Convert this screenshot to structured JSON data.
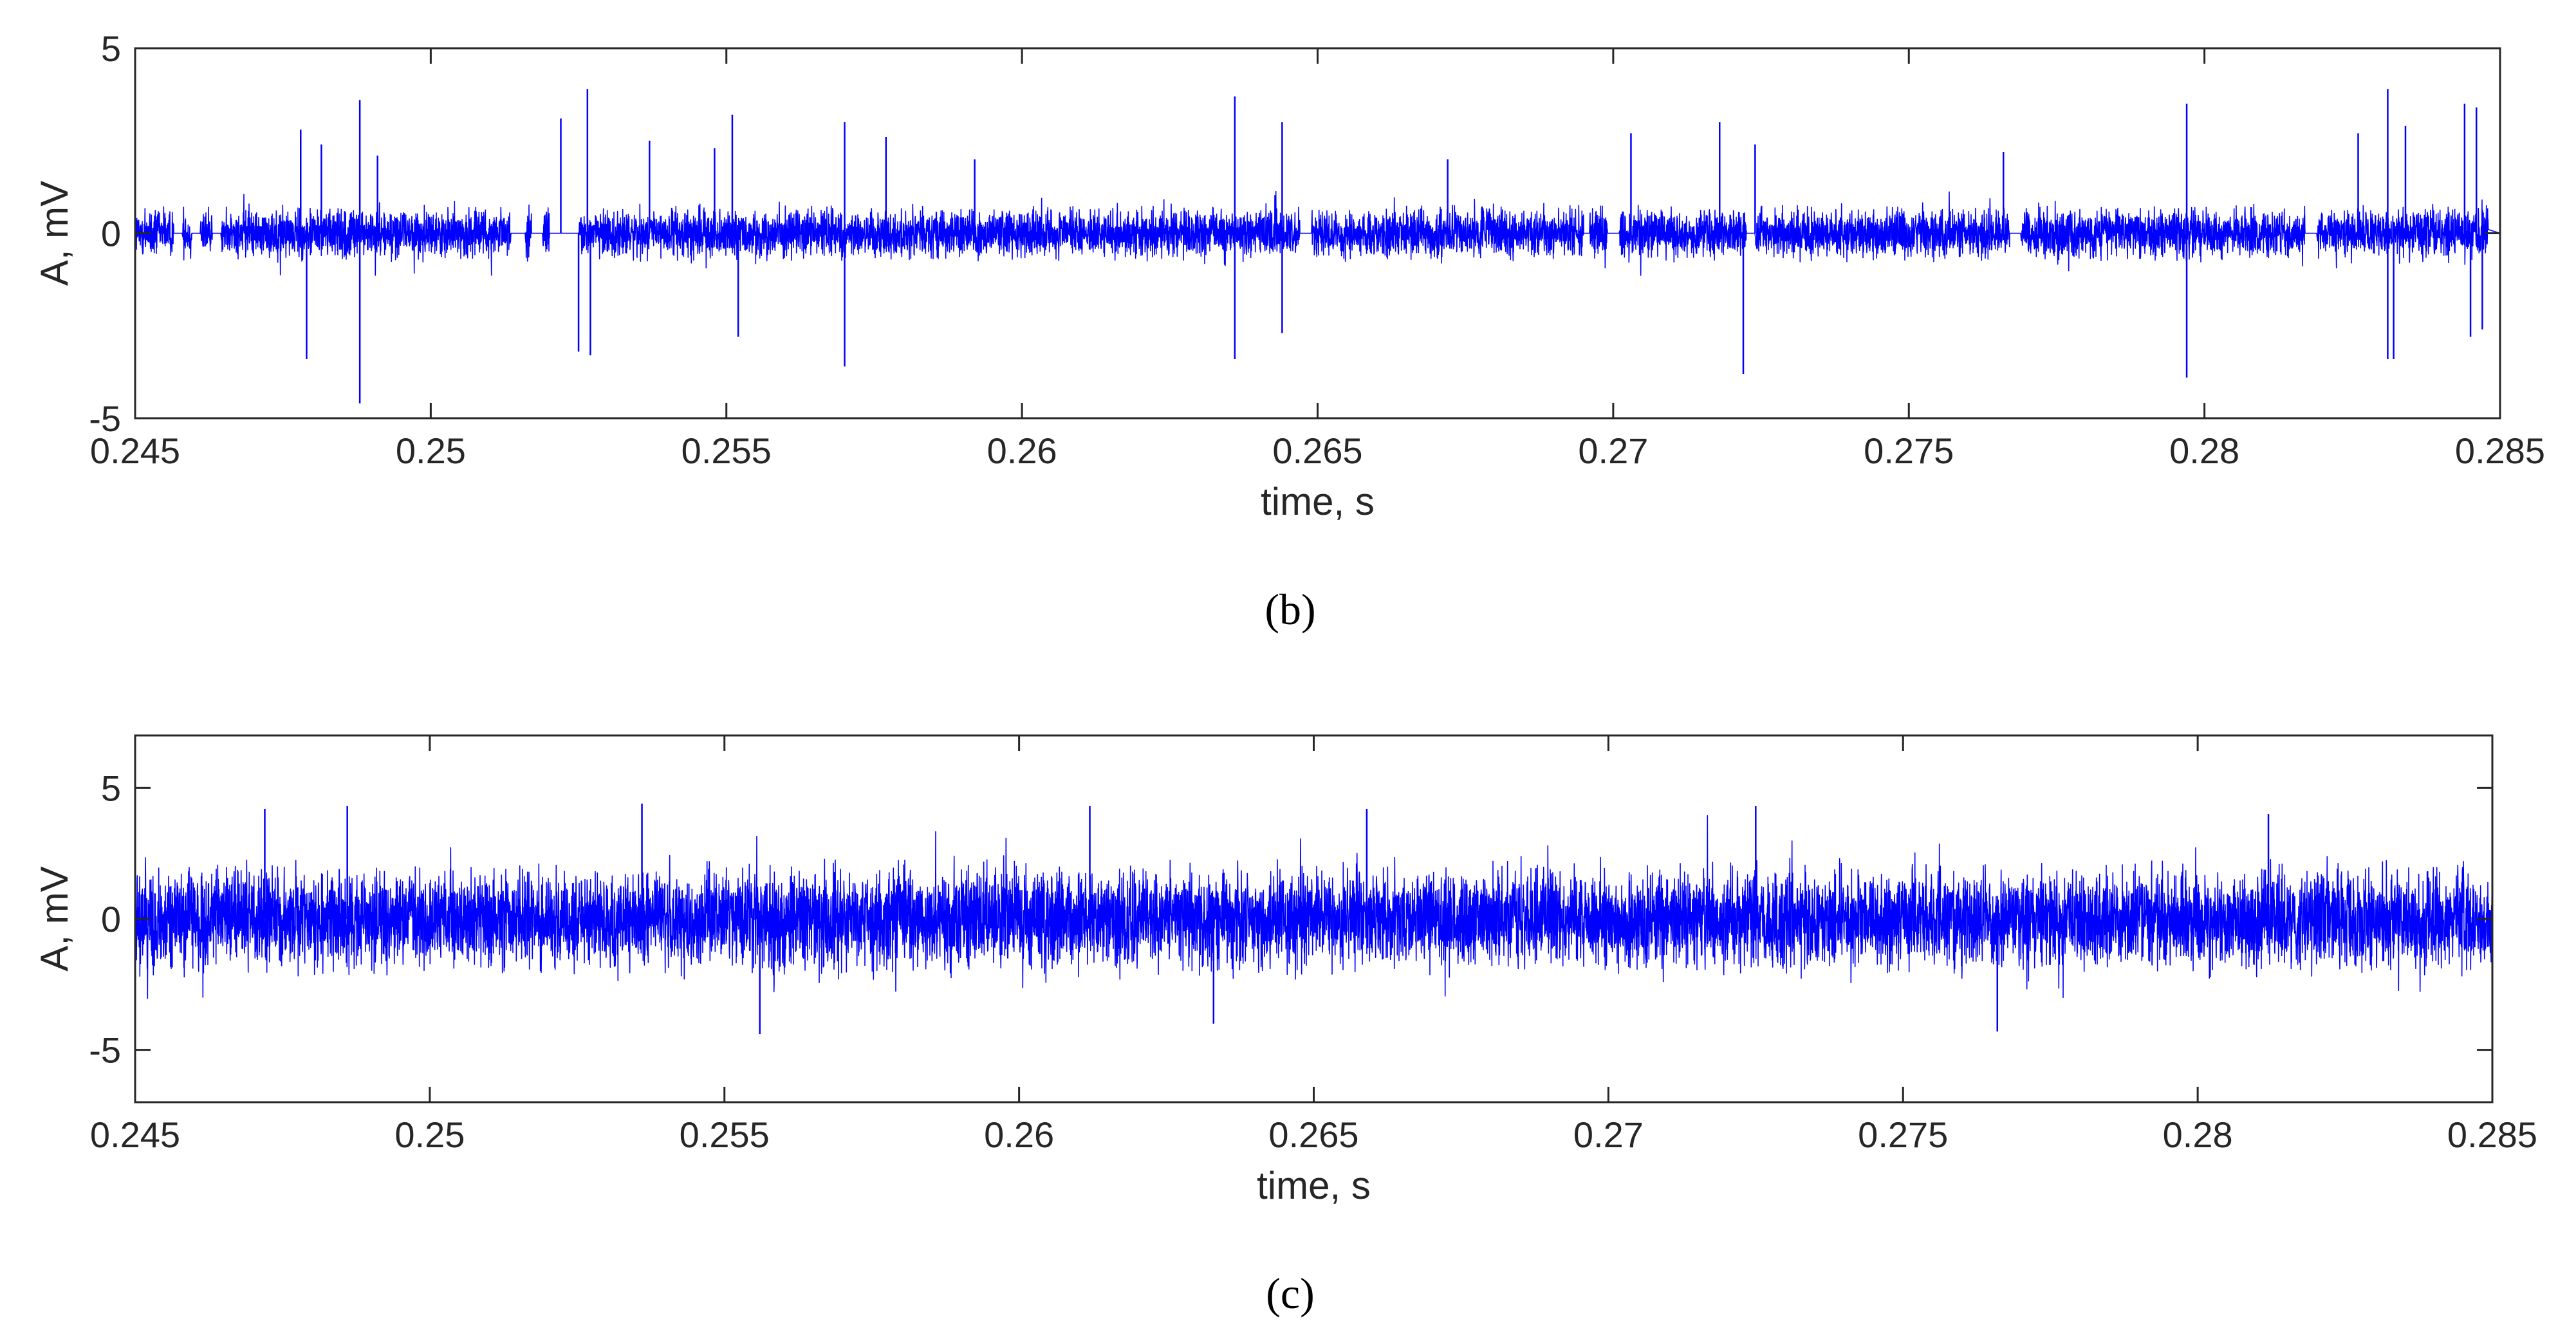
{
  "chart_data": [
    {
      "type": "line",
      "panel_label": "b",
      "title": "",
      "xlabel": "time, s",
      "ylabel": "A, mV",
      "xlim": [
        0.245,
        0.285
      ],
      "ylim": [
        -5,
        5
      ],
      "x_ticks": [
        0.245,
        0.25,
        0.255,
        0.26,
        0.265,
        0.27,
        0.275,
        0.28,
        0.285
      ],
      "x_tick_labels": [
        "0.245",
        "0.25",
        "0.255",
        "0.26",
        "0.265",
        "0.27",
        "0.275",
        "0.28",
        "0.285"
      ],
      "y_ticks": [
        -5,
        0,
        5
      ],
      "y_tick_labels": [
        "-5",
        "0",
        "5"
      ],
      "grid": false,
      "legend": "none",
      "color": "#0000ff",
      "signal": {
        "x_start": 0.245,
        "x_end": 0.2848,
        "noise_amplitude": 0.9,
        "quiet_intervals": [
          [
            0.24565,
            0.2458
          ],
          [
            0.24595,
            0.2461
          ],
          [
            0.2463,
            0.24645
          ],
          [
            0.25135,
            0.2516
          ],
          [
            0.2517,
            0.2519
          ],
          [
            0.252,
            0.2525
          ],
          [
            0.2647,
            0.2649
          ],
          [
            0.2695,
            0.2696
          ],
          [
            0.2699,
            0.2701
          ],
          [
            0.27225,
            0.2724
          ],
          [
            0.2767,
            0.2769
          ],
          [
            0.2817,
            0.2819
          ],
          [
            0.2848,
            0.285
          ]
        ],
        "spikes": [
          [
            0.2478,
            2.8
          ],
          [
            0.2479,
            -3.4
          ],
          [
            0.24815,
            2.4
          ],
          [
            0.2488,
            3.6
          ],
          [
            0.2488,
            -4.6
          ],
          [
            0.2491,
            2.1
          ],
          [
            0.2522,
            3.1
          ],
          [
            0.2525,
            -3.2
          ],
          [
            0.25265,
            3.9
          ],
          [
            0.2527,
            -3.3
          ],
          [
            0.2537,
            2.5
          ],
          [
            0.2548,
            2.3
          ],
          [
            0.2551,
            3.2
          ],
          [
            0.2552,
            -2.8
          ],
          [
            0.257,
            3.0
          ],
          [
            0.257,
            -3.6
          ],
          [
            0.2577,
            2.6
          ],
          [
            0.2592,
            2.0
          ],
          [
            0.2636,
            3.7
          ],
          [
            0.2636,
            -3.4
          ],
          [
            0.2644,
            3.0
          ],
          [
            0.2644,
            -2.7
          ],
          [
            0.2672,
            2.0
          ],
          [
            0.2703,
            2.7
          ],
          [
            0.2718,
            3.0
          ],
          [
            0.2722,
            -3.8
          ],
          [
            0.2724,
            2.4
          ],
          [
            0.2766,
            2.2
          ],
          [
            0.2797,
            3.5
          ],
          [
            0.2797,
            -3.9
          ],
          [
            0.2826,
            2.7
          ],
          [
            0.2831,
            3.9
          ],
          [
            0.2831,
            -3.4
          ],
          [
            0.2832,
            -3.4
          ],
          [
            0.2834,
            2.9
          ],
          [
            0.2844,
            3.5
          ],
          [
            0.2845,
            -2.8
          ],
          [
            0.2846,
            3.4
          ],
          [
            0.2847,
            -2.6
          ]
        ]
      }
    },
    {
      "type": "line",
      "panel_label": "c",
      "title": "",
      "xlabel": "time, s",
      "ylabel": "A, mV",
      "xlim": [
        0.245,
        0.285
      ],
      "ylim": [
        -7,
        7
      ],
      "x_ticks": [
        0.245,
        0.25,
        0.255,
        0.26,
        0.265,
        0.27,
        0.275,
        0.28,
        0.285
      ],
      "x_tick_labels": [
        "0.245",
        "0.25",
        "0.255",
        "0.26",
        "0.265",
        "0.27",
        "0.275",
        "0.28",
        "0.285"
      ],
      "y_ticks": [
        -5,
        0,
        5
      ],
      "y_tick_labels": [
        "-5",
        "0",
        "5"
      ],
      "grid": false,
      "legend": "none",
      "color": "#0000ff",
      "signal": {
        "x_start": 0.245,
        "x_end": 0.285,
        "noise_amplitude": 2.6,
        "quiet_intervals": [],
        "spikes": [
          [
            0.2472,
            4.2
          ],
          [
            0.2486,
            4.3
          ],
          [
            0.2536,
            4.4
          ],
          [
            0.2556,
            -4.4
          ],
          [
            0.2612,
            4.3
          ],
          [
            0.2633,
            -4.0
          ],
          [
            0.2659,
            4.2
          ],
          [
            0.2725,
            4.3
          ],
          [
            0.2766,
            -4.3
          ],
          [
            0.2812,
            4.0
          ]
        ]
      }
    }
  ],
  "captions": [
    "(b)",
    "(c)"
  ]
}
